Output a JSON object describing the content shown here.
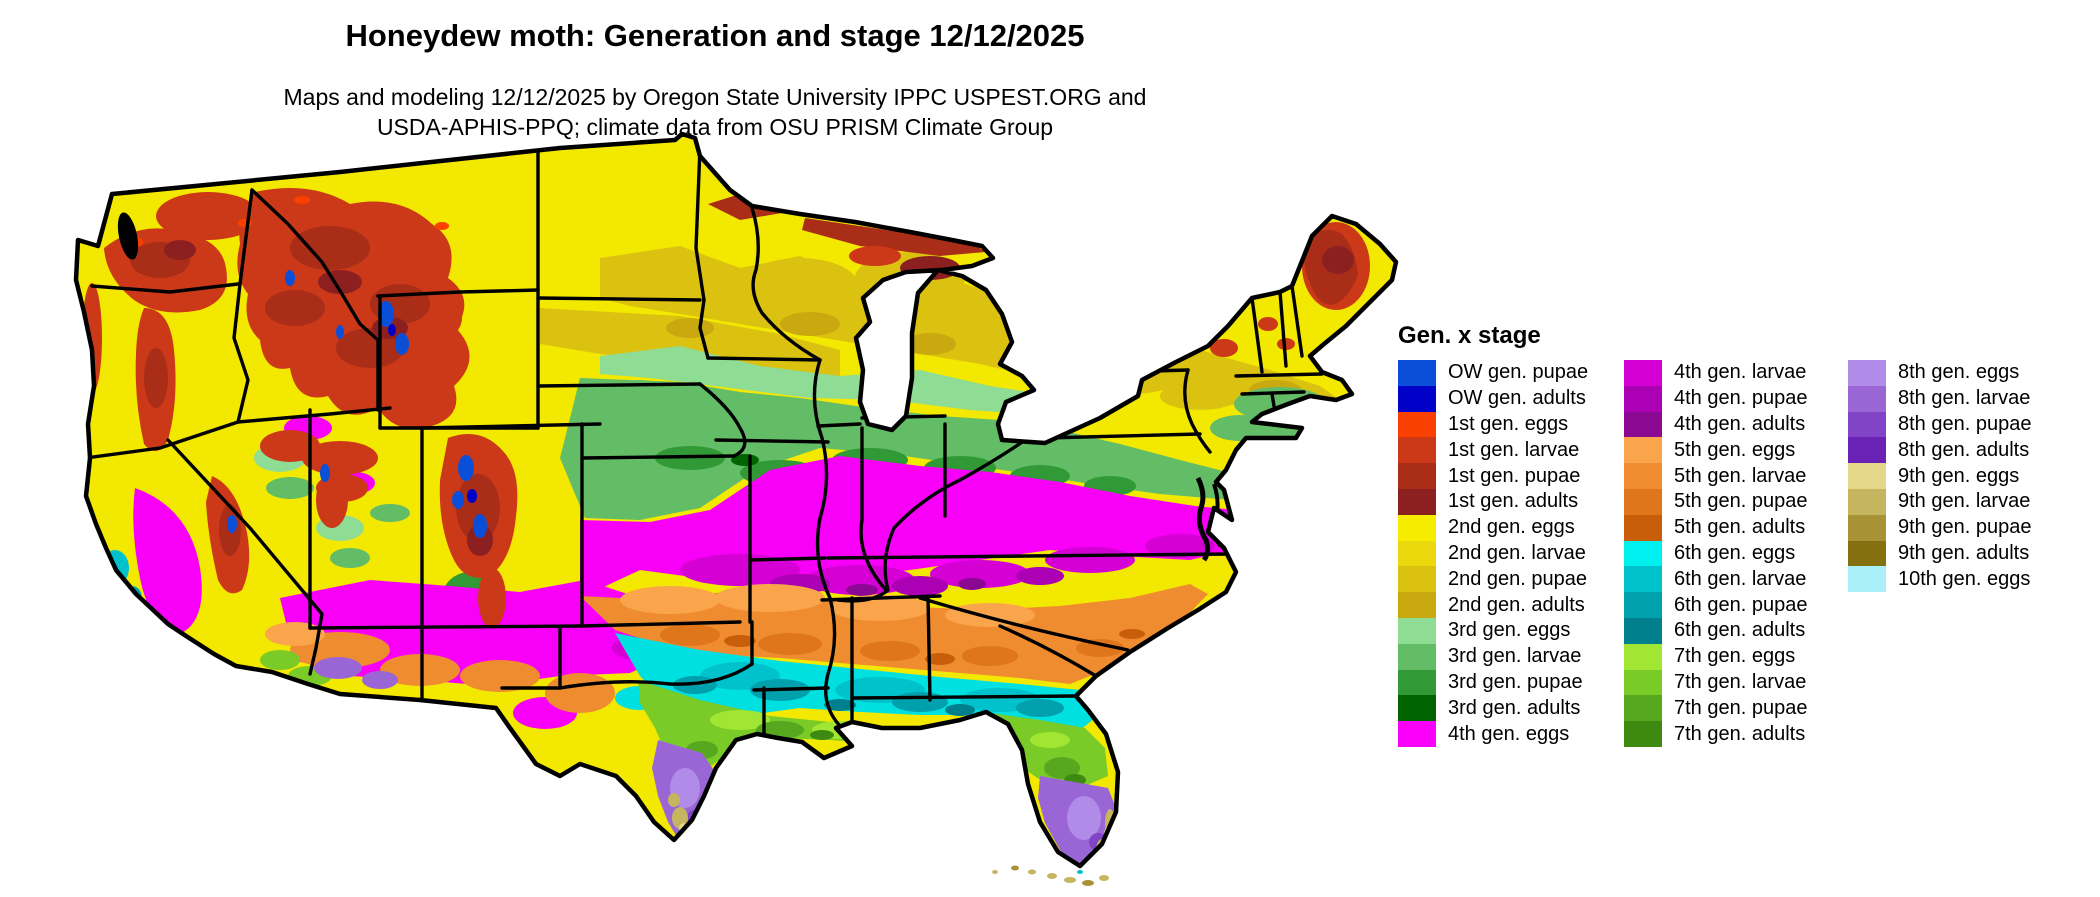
{
  "header": {
    "title": "Honeydew moth: Generation and stage 12/12/2025",
    "subtitle_line1": "Maps and modeling 12/12/2025 by Oregon State University IPPC USPEST.ORG and",
    "subtitle_line2": "USDA-APHIS-PPQ; climate data from OSU PRISM Climate Group"
  },
  "legend": {
    "title": "Gen. x stage",
    "columns": [
      [
        {
          "label": "OW gen. pupae",
          "color": "#0B4FD8"
        },
        {
          "label": "OW gen. adults",
          "color": "#0000C8"
        },
        {
          "label": "1st gen. eggs",
          "color": "#FA4000"
        },
        {
          "label": "1st gen. larvae",
          "color": "#CC3918"
        },
        {
          "label": "1st gen. pupae",
          "color": "#AA2D18"
        },
        {
          "label": "1st gen. adults",
          "color": "#8C2020"
        },
        {
          "label": "2nd gen. eggs",
          "color": "#F6EC00"
        },
        {
          "label": "2nd gen. larvae",
          "color": "#EBD90E"
        },
        {
          "label": "2nd gen. pupae",
          "color": "#DCC210"
        },
        {
          "label": "2nd gen. adults",
          "color": "#C9A90F"
        },
        {
          "label": "3rd gen. eggs",
          "color": "#8FDC95"
        },
        {
          "label": "3rd gen. larvae",
          "color": "#63BC66"
        },
        {
          "label": "3rd gen. pupae",
          "color": "#319936"
        },
        {
          "label": "3rd gen. adults",
          "color": "#006400"
        },
        {
          "label": "4th gen. eggs",
          "color": "#FA00FA"
        }
      ],
      [
        {
          "label": "4th gen. larvae",
          "color": "#D400D4"
        },
        {
          "label": "4th gen. pupae",
          "color": "#AC00B4"
        },
        {
          "label": "4th gen. adults",
          "color": "#8A0892"
        },
        {
          "label": "5th gen. eggs",
          "color": "#FAA44C"
        },
        {
          "label": "5th gen. larvae",
          "color": "#EF8C2F"
        },
        {
          "label": "5th gen. pupae",
          "color": "#E0761C"
        },
        {
          "label": "5th gen. adults",
          "color": "#C85E0A"
        },
        {
          "label": "6th gen. eggs",
          "color": "#00EFEF"
        },
        {
          "label": "6th gen. larvae",
          "color": "#00C2CC"
        },
        {
          "label": "6th gen. pupae",
          "color": "#00A0AC"
        },
        {
          "label": "6th gen. adults",
          "color": "#007F8C"
        },
        {
          "label": "7th gen. eggs",
          "color": "#A0E632"
        },
        {
          "label": "7th gen. larvae",
          "color": "#7ACB28"
        },
        {
          "label": "7th gen. pupae",
          "color": "#58A81F"
        },
        {
          "label": "7th gen. adults",
          "color": "#3E8A10"
        }
      ],
      [
        {
          "label": "8th gen. eggs",
          "color": "#B18BE8"
        },
        {
          "label": "8th gen. larvae",
          "color": "#9A66D6"
        },
        {
          "label": "8th gen. pupae",
          "color": "#8244C6"
        },
        {
          "label": "8th gen. adults",
          "color": "#6A22B4"
        },
        {
          "label": "9th gen. eggs",
          "color": "#E5D789"
        },
        {
          "label": "9th gen. larvae",
          "color": "#C5B55E"
        },
        {
          "label": "9th gen. pupae",
          "color": "#A79336"
        },
        {
          "label": "9th gen. adults",
          "color": "#857010"
        },
        {
          "label": "10th gen. eggs",
          "color": "#A8EFF8"
        }
      ]
    ]
  }
}
